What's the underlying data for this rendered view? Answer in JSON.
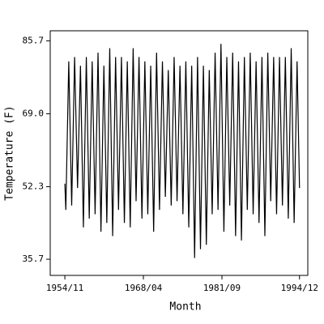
{
  "chart_data": {
    "type": "line",
    "x_label": "Month",
    "y_label": "Temperature (F)",
    "color": "#000000",
    "xlim": [
      "1952/05",
      "1996/05"
    ],
    "xticks": [
      "1954/11",
      "1968/04",
      "1981/09",
      "1994/12"
    ],
    "ylim": [
      32,
      88
    ],
    "yticks": [
      35.7,
      52.3,
      {
        "value": 69,
        "label": "69.0"
      },
      85.7
    ],
    "x": [
      "1954/11",
      "1955/01",
      "1955/07",
      "1956/01",
      "1956/07",
      "1957/01",
      "1957/07",
      "1958/01",
      "1958/07",
      "1959/01",
      "1959/07",
      "1960/01",
      "1960/07",
      "1961/01",
      "1961/07",
      "1962/01",
      "1962/07",
      "1963/01",
      "1963/07",
      "1964/01",
      "1964/07",
      "1965/01",
      "1965/07",
      "1966/01",
      "1966/07",
      "1967/01",
      "1967/07",
      "1968/01",
      "1968/07",
      "1969/01",
      "1969/07",
      "1970/01",
      "1970/07",
      "1971/01",
      "1971/07",
      "1972/01",
      "1972/07",
      "1973/01",
      "1973/07",
      "1974/01",
      "1974/07",
      "1975/01",
      "1975/07",
      "1976/01",
      "1976/07",
      "1977/01",
      "1977/07",
      "1978/01",
      "1978/07",
      "1979/01",
      "1979/07",
      "1980/01",
      "1980/07",
      "1981/01",
      "1981/07",
      "1982/01",
      "1982/07",
      "1983/01",
      "1983/07",
      "1984/01",
      "1984/07",
      "1985/01",
      "1985/07",
      "1986/01",
      "1986/07",
      "1987/01",
      "1987/07",
      "1988/01",
      "1988/07",
      "1989/01",
      "1989/07",
      "1990/01",
      "1990/07",
      "1991/01",
      "1991/07",
      "1992/01",
      "1992/07",
      "1993/01",
      "1993/07",
      "1994/01",
      "1994/07",
      "1994/12"
    ],
    "values": [
      53,
      47,
      81,
      48,
      82,
      52,
      80,
      43,
      82,
      45,
      81,
      46,
      83,
      42,
      80,
      44,
      84,
      41,
      82,
      47,
      82,
      44,
      81,
      43,
      84,
      49,
      82,
      45,
      81,
      46,
      80,
      42,
      83,
      47,
      81,
      50,
      79,
      48,
      82,
      49,
      80,
      46,
      81,
      43,
      80,
      36,
      82,
      38,
      80,
      39,
      79,
      46,
      83,
      47,
      85,
      42,
      82,
      48,
      83,
      41,
      81,
      40,
      82,
      47,
      83,
      46,
      81,
      44,
      82,
      41,
      83,
      49,
      82,
      46,
      82,
      48,
      82,
      45,
      84,
      44,
      81,
      52
    ]
  }
}
